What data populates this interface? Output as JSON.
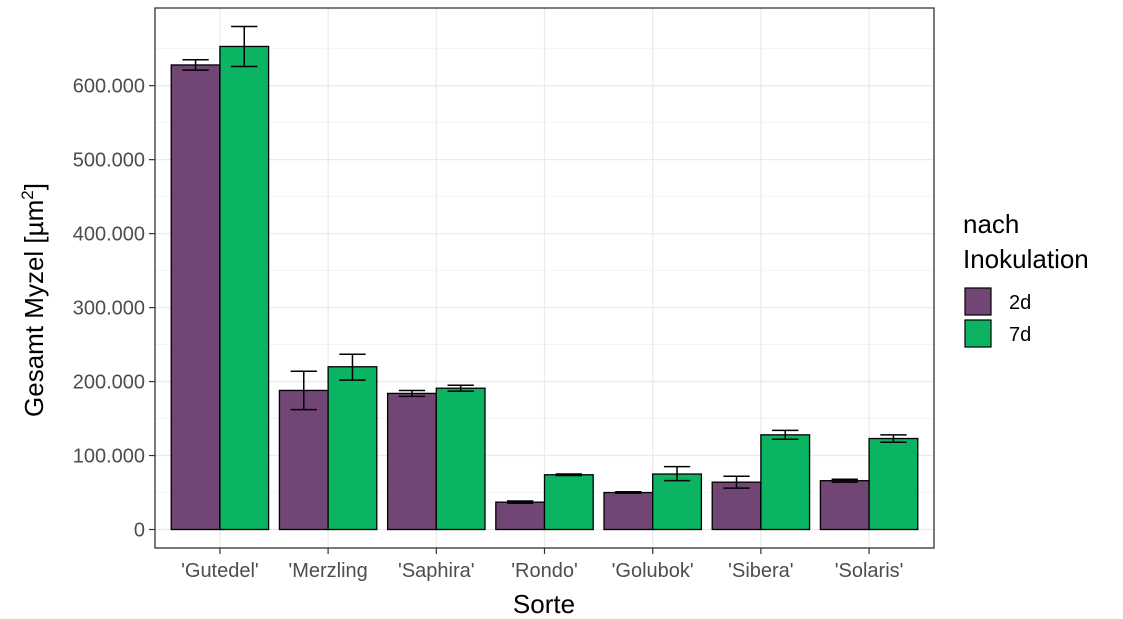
{
  "chart_data": {
    "type": "bar",
    "xlabel": "Sorte",
    "ylabel": "Gesamt Myzel [µm²]",
    "ylabel_main": "Gesamt Myzel [µm",
    "ylabel_sup": "2",
    "ylabel_end": "]",
    "categories": [
      "'Gutedel'",
      "'Merzling",
      "'Saphira'",
      "'Rondo'",
      "'Golubok'",
      "'Sibera'",
      "'Solaris'"
    ],
    "ylim": [
      -25000,
      705000
    ],
    "yticks": [
      0,
      100000,
      200000,
      300000,
      400000,
      500000,
      600000
    ],
    "ytick_labels": [
      "0",
      "100.000",
      "200.000",
      "300.000",
      "400.000",
      "500.000",
      "600.000"
    ],
    "grid": true,
    "legend_position": "right",
    "legend_title_lines": [
      "nach",
      "Inokulation"
    ],
    "series": [
      {
        "name": "2d",
        "color": "#714674",
        "values": [
          628000,
          188000,
          184000,
          37000,
          50000,
          64000,
          66000
        ],
        "err_low": [
          621000,
          162000,
          180000,
          35500,
          49000,
          56000,
          64000
        ],
        "err_high": [
          635000,
          214000,
          188000,
          38500,
          51000,
          72000,
          68000
        ]
      },
      {
        "name": "7d",
        "color": "#0ab463",
        "values": [
          653000,
          220000,
          191000,
          74000,
          75000,
          128000,
          123000
        ],
        "err_low": [
          626000,
          202000,
          187000,
          73000,
          66000,
          122000,
          118000
        ],
        "err_high": [
          680000,
          237000,
          195000,
          75000,
          85000,
          134000,
          128000
        ]
      }
    ]
  }
}
